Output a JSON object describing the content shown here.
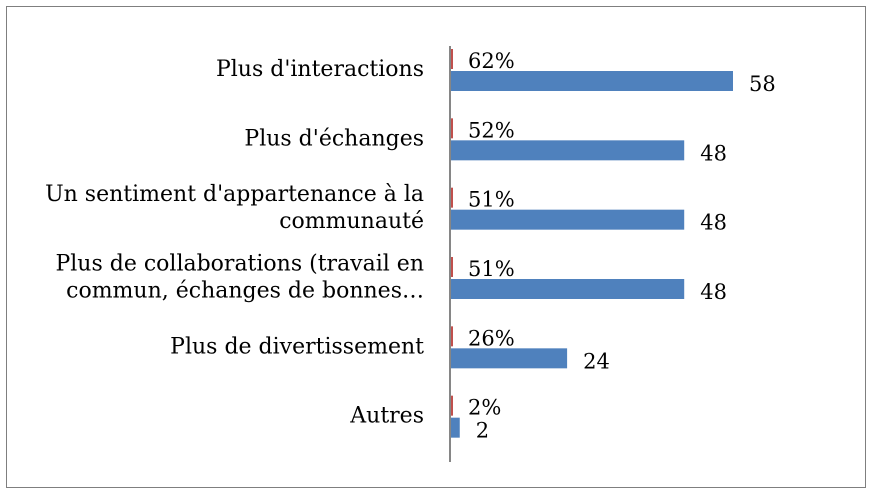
{
  "chart_data": {
    "type": "bar",
    "orientation": "horizontal",
    "title": "",
    "xlabel": "",
    "ylabel": "",
    "grid": false,
    "legend": "none",
    "categories": [
      [
        "Plus d'interactions"
      ],
      [
        "Plus d'échanges"
      ],
      [
        "Un sentiment d'appartenance à la",
        "communauté"
      ],
      [
        "Plus de collaborations (travail en",
        "commun, échanges de bonnes…"
      ],
      [
        "Plus de divertissement"
      ],
      [
        "Autres"
      ]
    ],
    "series": [
      {
        "values": [
          58,
          48,
          48,
          48,
          24,
          2
        ],
        "color": "#4f81bd"
      },
      {
        "values": [
          62,
          52,
          51,
          51,
          26,
          2
        ],
        "labels": [
          "62%",
          "52%",
          "51%",
          "51%",
          "26%",
          "2%"
        ],
        "color": "#c0504d"
      }
    ],
    "xlim": [
      0,
      70
    ]
  }
}
